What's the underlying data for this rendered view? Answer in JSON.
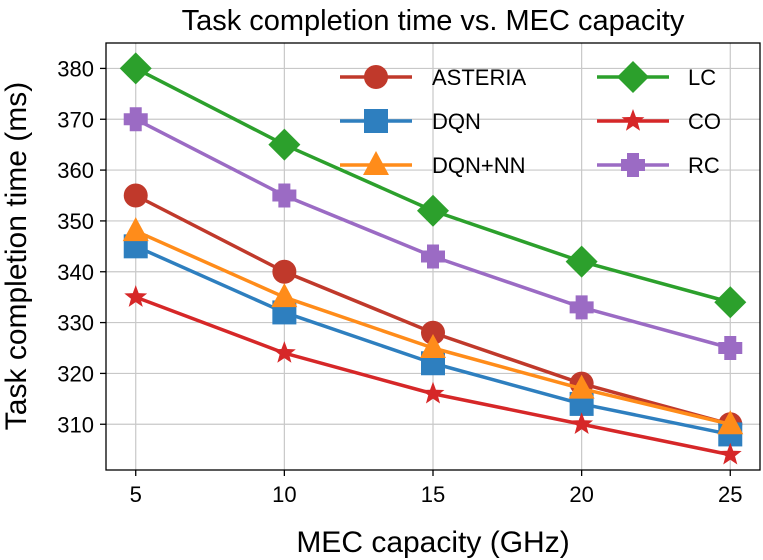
{
  "chart_data": {
    "type": "line",
    "title": "Task completion time vs. MEC capacity",
    "xlabel": "MEC capacity (GHz)",
    "ylabel": "Task completion time (ms)",
    "x": [
      5,
      10,
      15,
      20,
      25
    ],
    "xticks": [
      5,
      10,
      15,
      20,
      25
    ],
    "yticks": [
      310,
      320,
      330,
      340,
      350,
      360,
      370,
      380
    ],
    "xlim": [
      4,
      26
    ],
    "ylim": [
      301,
      385
    ],
    "grid": true,
    "legend_position": "top-right",
    "series": [
      {
        "name": "ASTERIA",
        "color": "#c0392b",
        "marker": "circle",
        "values": [
          355,
          340,
          328,
          318,
          310
        ]
      },
      {
        "name": "DQN",
        "color": "#2e7fbf",
        "marker": "square",
        "values": [
          345,
          332,
          322,
          314,
          308
        ]
      },
      {
        "name": "DQN+NN",
        "color": "#ff8c1a",
        "marker": "triangle",
        "values": [
          348,
          335,
          325,
          317,
          310
        ]
      },
      {
        "name": "LC",
        "color": "#2ca02c",
        "marker": "diamond",
        "values": [
          380,
          365,
          352,
          342,
          334
        ]
      },
      {
        "name": "CO",
        "color": "#d62728",
        "marker": "star",
        "values": [
          335,
          324,
          316,
          310,
          304
        ]
      },
      {
        "name": "RC",
        "color": "#9b6bc4",
        "marker": "plus",
        "values": [
          370,
          355,
          343,
          333,
          325
        ]
      }
    ]
  }
}
